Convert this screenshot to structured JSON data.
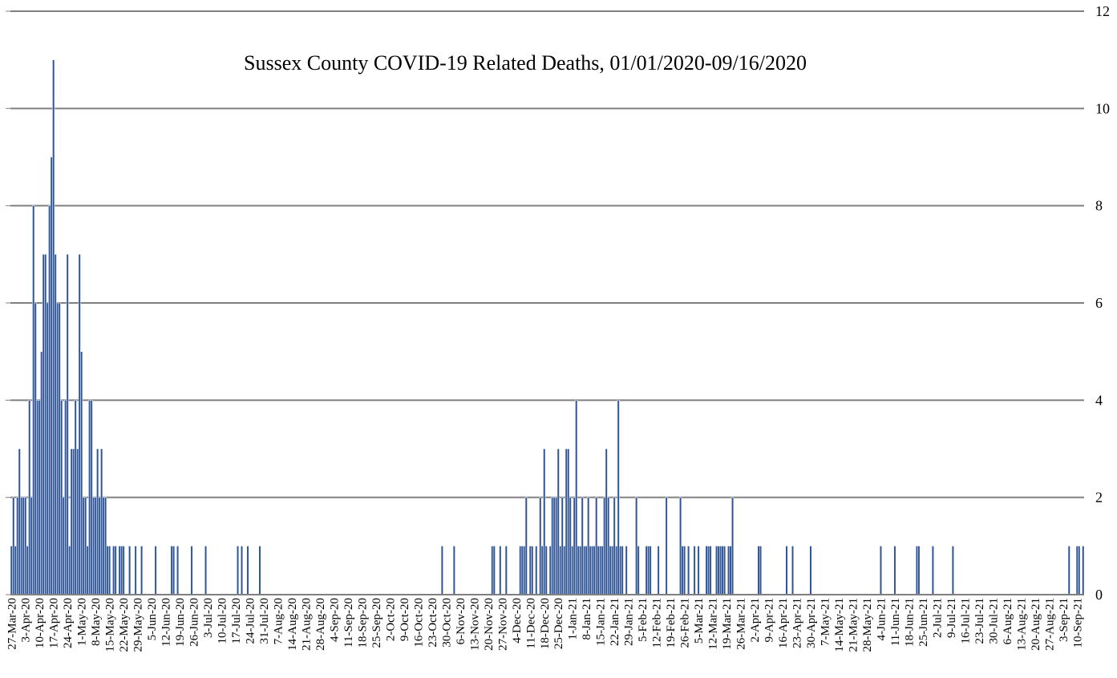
{
  "chart_data": {
    "type": "bar",
    "title": "Sussex County COVID-19 Related Deaths, 01/01/2020-09/16/2020",
    "xlabel": "",
    "ylabel": "",
    "ylim": [
      0,
      12
    ],
    "yticks": [
      "0",
      "2",
      "4",
      "6",
      "8",
      "10",
      "12"
    ],
    "y_axis_side": "right",
    "grid": true,
    "legend": "none",
    "colors": {
      "bar": "#2f5597",
      "grid": "#808080",
      "axis": "#808080"
    },
    "x_start": "2020-03-27",
    "x_end": "2021-09-13",
    "xtick_labels": [
      "27-Mar-20",
      "3-Apr-20",
      "10-Apr-20",
      "17-Apr-20",
      "24-Apr-20",
      "1-May-20",
      "8-May-20",
      "15-May-20",
      "22-May-20",
      "29-May-20",
      "5-Jun-20",
      "12-Jun-20",
      "19-Jun-20",
      "26-Jun-20",
      "3-Jul-20",
      "10-Jul-20",
      "17-Jul-20",
      "24-Jul-20",
      "31-Jul-20",
      "7-Aug-20",
      "14-Aug-20",
      "21-Aug-20",
      "28-Aug-20",
      "4-Sep-20",
      "11-Sep-20",
      "18-Sep-20",
      "25-Sep-20",
      "2-Oct-20",
      "9-Oct-20",
      "16-Oct-20",
      "23-Oct-20",
      "30-Oct-20",
      "6-Nov-20",
      "13-Nov-20",
      "20-Nov-20",
      "27-Nov-20",
      "4-Dec-20",
      "11-Dec-20",
      "18-Dec-20",
      "25-Dec-20",
      "1-Jan-21",
      "8-Jan-21",
      "15-Jan-21",
      "22-Jan-21",
      "29-Jan-21",
      "5-Feb-21",
      "12-Feb-21",
      "19-Feb-21",
      "26-Feb-21",
      "5-Mar-21",
      "12-Mar-21",
      "19-Mar-21",
      "26-Mar-21",
      "2-Apr-21",
      "9-Apr-21",
      "16-Apr-21",
      "23-Apr-21",
      "30-Apr-21",
      "7-May-21",
      "14-May-21",
      "21-May-21",
      "28-May-21",
      "4-Jun-21",
      "11-Jun-21",
      "18-Jun-21",
      "25-Jun-21",
      "2-Jul-21",
      "9-Jul-21",
      "16-Jul-21",
      "23-Jul-21",
      "30-Jul-21",
      "6-Aug-21",
      "13-Aug-21",
      "20-Aug-21",
      "27-Aug-21",
      "3-Sep-21",
      "10-Sep-21"
    ],
    "points": [
      [
        "2020-03-27",
        1
      ],
      [
        "2020-03-28",
        2
      ],
      [
        "2020-03-29",
        1
      ],
      [
        "2020-03-30",
        2
      ],
      [
        "2020-03-31",
        3
      ],
      [
        "2020-04-01",
        2
      ],
      [
        "2020-04-02",
        2
      ],
      [
        "2020-04-03",
        2
      ],
      [
        "2020-04-04",
        1
      ],
      [
        "2020-04-05",
        4
      ],
      [
        "2020-04-06",
        2
      ],
      [
        "2020-04-07",
        8
      ],
      [
        "2020-04-08",
        6
      ],
      [
        "2020-04-09",
        4
      ],
      [
        "2020-04-10",
        4
      ],
      [
        "2020-04-11",
        5
      ],
      [
        "2020-04-12",
        7
      ],
      [
        "2020-04-13",
        7
      ],
      [
        "2020-04-14",
        6
      ],
      [
        "2020-04-15",
        8
      ],
      [
        "2020-04-16",
        9
      ],
      [
        "2020-04-17",
        11
      ],
      [
        "2020-04-18",
        7
      ],
      [
        "2020-04-19",
        6
      ],
      [
        "2020-04-20",
        6
      ],
      [
        "2020-04-21",
        4
      ],
      [
        "2020-04-22",
        2
      ],
      [
        "2020-04-23",
        4
      ],
      [
        "2020-04-24",
        7
      ],
      [
        "2020-04-25",
        1
      ],
      [
        "2020-04-26",
        3
      ],
      [
        "2020-04-27",
        3
      ],
      [
        "2020-04-28",
        4
      ],
      [
        "2020-04-29",
        3
      ],
      [
        "2020-04-30",
        7
      ],
      [
        "2020-05-01",
        5
      ],
      [
        "2020-05-02",
        2
      ],
      [
        "2020-05-03",
        2
      ],
      [
        "2020-05-04",
        1
      ],
      [
        "2020-05-05",
        4
      ],
      [
        "2020-05-06",
        4
      ],
      [
        "2020-05-07",
        2
      ],
      [
        "2020-05-08",
        2
      ],
      [
        "2020-05-09",
        3
      ],
      [
        "2020-05-10",
        2
      ],
      [
        "2020-05-11",
        3
      ],
      [
        "2020-05-12",
        2
      ],
      [
        "2020-05-13",
        2
      ],
      [
        "2020-05-14",
        1
      ],
      [
        "2020-05-15",
        1
      ],
      [
        "2020-05-17",
        1
      ],
      [
        "2020-05-18",
        1
      ],
      [
        "2020-05-20",
        1
      ],
      [
        "2020-05-21",
        1
      ],
      [
        "2020-05-22",
        1
      ],
      [
        "2020-05-25",
        1
      ],
      [
        "2020-05-28",
        1
      ],
      [
        "2020-05-31",
        1
      ],
      [
        "2020-06-07",
        1
      ],
      [
        "2020-06-15",
        1
      ],
      [
        "2020-06-16",
        1
      ],
      [
        "2020-06-18",
        1
      ],
      [
        "2020-06-25",
        1
      ],
      [
        "2020-07-02",
        1
      ],
      [
        "2020-07-18",
        1
      ],
      [
        "2020-07-20",
        1
      ],
      [
        "2020-07-23",
        1
      ],
      [
        "2020-07-29",
        1
      ],
      [
        "2020-10-28",
        1
      ],
      [
        "2020-11-03",
        1
      ],
      [
        "2020-11-22",
        1
      ],
      [
        "2020-11-23",
        1
      ],
      [
        "2020-11-26",
        1
      ],
      [
        "2020-11-29",
        1
      ],
      [
        "2020-12-06",
        1
      ],
      [
        "2020-12-07",
        1
      ],
      [
        "2020-12-08",
        1
      ],
      [
        "2020-12-09",
        2
      ],
      [
        "2020-12-11",
        1
      ],
      [
        "2020-12-12",
        1
      ],
      [
        "2020-12-14",
        1
      ],
      [
        "2020-12-16",
        2
      ],
      [
        "2020-12-17",
        1
      ],
      [
        "2020-12-18",
        3
      ],
      [
        "2020-12-19",
        1
      ],
      [
        "2020-12-21",
        1
      ],
      [
        "2020-12-22",
        2
      ],
      [
        "2020-12-23",
        2
      ],
      [
        "2020-12-24",
        2
      ],
      [
        "2020-12-25",
        3
      ],
      [
        "2020-12-26",
        1
      ],
      [
        "2020-12-27",
        2
      ],
      [
        "2020-12-28",
        1
      ],
      [
        "2020-12-29",
        3
      ],
      [
        "2020-12-30",
        3
      ],
      [
        "2020-12-31",
        2
      ],
      [
        "2021-01-01",
        1
      ],
      [
        "2021-01-02",
        2
      ],
      [
        "2021-01-03",
        4
      ],
      [
        "2021-01-04",
        1
      ],
      [
        "2021-01-05",
        1
      ],
      [
        "2021-01-06",
        2
      ],
      [
        "2021-01-07",
        1
      ],
      [
        "2021-01-08",
        1
      ],
      [
        "2021-01-09",
        2
      ],
      [
        "2021-01-10",
        1
      ],
      [
        "2021-01-11",
        1
      ],
      [
        "2021-01-12",
        1
      ],
      [
        "2021-01-13",
        2
      ],
      [
        "2021-01-14",
        1
      ],
      [
        "2021-01-15",
        1
      ],
      [
        "2021-01-16",
        1
      ],
      [
        "2021-01-17",
        2
      ],
      [
        "2021-01-18",
        3
      ],
      [
        "2021-01-19",
        2
      ],
      [
        "2021-01-20",
        1
      ],
      [
        "2021-01-21",
        1
      ],
      [
        "2021-01-22",
        2
      ],
      [
        "2021-01-23",
        1
      ],
      [
        "2021-01-24",
        4
      ],
      [
        "2021-01-25",
        1
      ],
      [
        "2021-01-26",
        1
      ],
      [
        "2021-01-28",
        1
      ],
      [
        "2021-02-02",
        2
      ],
      [
        "2021-02-03",
        1
      ],
      [
        "2021-02-07",
        1
      ],
      [
        "2021-02-08",
        1
      ],
      [
        "2021-02-09",
        1
      ],
      [
        "2021-02-13",
        1
      ],
      [
        "2021-02-17",
        2
      ],
      [
        "2021-02-24",
        2
      ],
      [
        "2021-02-25",
        1
      ],
      [
        "2021-02-26",
        1
      ],
      [
        "2021-02-28",
        1
      ],
      [
        "2021-03-03",
        1
      ],
      [
        "2021-03-05",
        1
      ],
      [
        "2021-03-09",
        1
      ],
      [
        "2021-03-10",
        1
      ],
      [
        "2021-03-11",
        1
      ],
      [
        "2021-03-14",
        1
      ],
      [
        "2021-03-15",
        1
      ],
      [
        "2021-03-16",
        1
      ],
      [
        "2021-03-17",
        1
      ],
      [
        "2021-03-18",
        1
      ],
      [
        "2021-03-20",
        1
      ],
      [
        "2021-03-21",
        1
      ],
      [
        "2021-03-22",
        2
      ],
      [
        "2021-04-04",
        1
      ],
      [
        "2021-04-05",
        1
      ],
      [
        "2021-04-18",
        1
      ],
      [
        "2021-04-21",
        1
      ],
      [
        "2021-04-30",
        1
      ],
      [
        "2021-06-04",
        1
      ],
      [
        "2021-06-11",
        1
      ],
      [
        "2021-06-22",
        1
      ],
      [
        "2021-06-23",
        1
      ],
      [
        "2021-06-30",
        1
      ],
      [
        "2021-07-10",
        1
      ],
      [
        "2021-09-06",
        1
      ],
      [
        "2021-09-10",
        1
      ],
      [
        "2021-09-11",
        1
      ],
      [
        "2021-09-13",
        1
      ]
    ]
  }
}
